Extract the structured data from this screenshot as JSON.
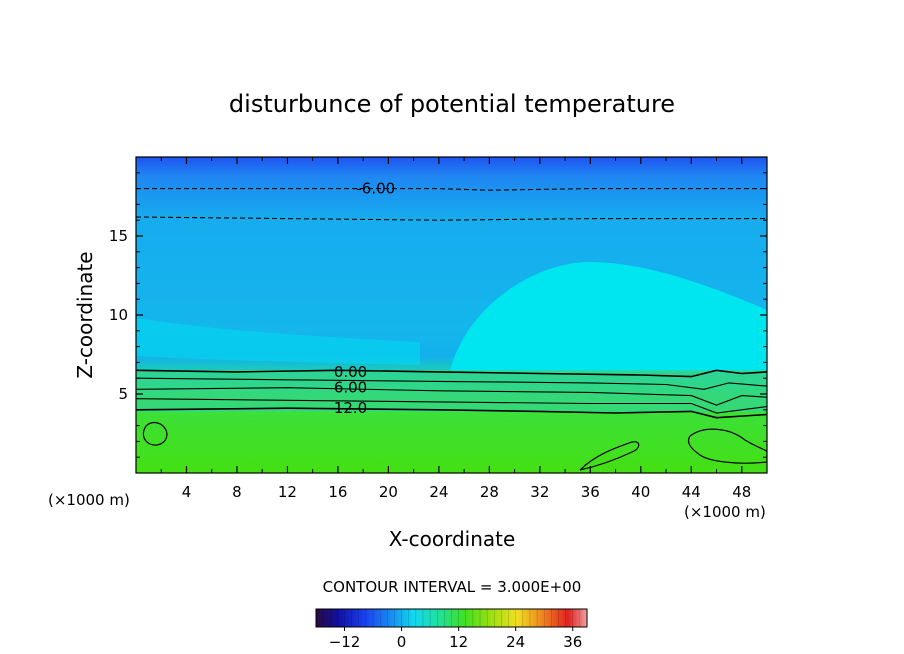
{
  "chart_data": {
    "type": "heatmap",
    "title": "disturbunce of potential temperature",
    "xlabel": "X-coordinate",
    "ylabel": "Z-coordinate",
    "x_unit_left": "(×1000 m)",
    "x_unit_right": "(×1000 m)",
    "xlim": [
      0,
      50
    ],
    "ylim": [
      0,
      20
    ],
    "xticks": [
      4,
      8,
      12,
      16,
      20,
      24,
      28,
      32,
      36,
      40,
      44,
      48
    ],
    "yticks": [
      5,
      10,
      15
    ],
    "contour_interval_text": "CONTOUR INTERVAL = 3.000E+00",
    "contour_labels": [
      {
        "text": "-6.00",
        "x": 19,
        "y": 18.0
      },
      {
        "text": "0.00",
        "x": 17,
        "y": 6.4
      },
      {
        "text": "6.00",
        "x": 17,
        "y": 5.4
      },
      {
        "text": "12.0",
        "x": 17,
        "y": 4.1
      }
    ],
    "contour_lines": [
      {
        "level": -6,
        "dashed": true,
        "points": [
          [
            0,
            18.0
          ],
          [
            16,
            18.0
          ],
          [
            24,
            18.0
          ],
          [
            28,
            17.9
          ],
          [
            36,
            18.0
          ],
          [
            44,
            18.0
          ],
          [
            50,
            18.0
          ]
        ]
      },
      {
        "level": -3,
        "dashed": true,
        "points": [
          [
            0,
            16.2
          ],
          [
            12,
            16.1
          ],
          [
            24,
            16.0
          ],
          [
            36,
            16.1
          ],
          [
            50,
            16.1
          ]
        ]
      },
      {
        "level": 0,
        "dashed": false,
        "points": [
          [
            0,
            6.5
          ],
          [
            8,
            6.4
          ],
          [
            16,
            6.5
          ],
          [
            24,
            6.4
          ],
          [
            32,
            6.3
          ],
          [
            40,
            6.2
          ],
          [
            44,
            6.1
          ],
          [
            46,
            6.5
          ],
          [
            48,
            6.3
          ],
          [
            50,
            6.4
          ]
        ]
      },
      {
        "level": 3,
        "dashed": false,
        "points": [
          [
            0,
            6.0
          ],
          [
            12,
            5.9
          ],
          [
            24,
            5.8
          ],
          [
            36,
            5.7
          ],
          [
            42,
            5.6
          ],
          [
            45,
            5.3
          ],
          [
            47,
            5.7
          ],
          [
            50,
            5.5
          ]
        ]
      },
      {
        "level": 6,
        "dashed": false,
        "points": [
          [
            0,
            5.3
          ],
          [
            12,
            5.4
          ],
          [
            24,
            5.2
          ],
          [
            36,
            5.1
          ],
          [
            44,
            4.9
          ],
          [
            46,
            4.3
          ],
          [
            48,
            4.9
          ],
          [
            50,
            4.8
          ]
        ]
      },
      {
        "level": 9,
        "dashed": false,
        "points": [
          [
            0,
            4.7
          ],
          [
            12,
            4.6
          ],
          [
            24,
            4.5
          ],
          [
            36,
            4.4
          ],
          [
            44,
            4.4
          ],
          [
            46,
            3.8
          ],
          [
            50,
            4.2
          ]
        ]
      },
      {
        "level": 12,
        "dashed": false,
        "points": [
          [
            0,
            4.0
          ],
          [
            12,
            4.1
          ],
          [
            24,
            4.0
          ],
          [
            32,
            3.9
          ],
          [
            38,
            3.8
          ],
          [
            44,
            3.9
          ],
          [
            46,
            3.5
          ],
          [
            50,
            3.7
          ]
        ]
      }
    ],
    "colorbar": {
      "min": -18,
      "max": 39,
      "ticks": [
        -12,
        0,
        12,
        24,
        36
      ]
    },
    "colors": {
      "top_band": "#1c6ef0",
      "upper": "#1d9cf0",
      "mid": "#14b6ec",
      "plume": "#00e6f0",
      "lower_layer": "#2ad1a0",
      "bottom": "#40e010"
    }
  }
}
